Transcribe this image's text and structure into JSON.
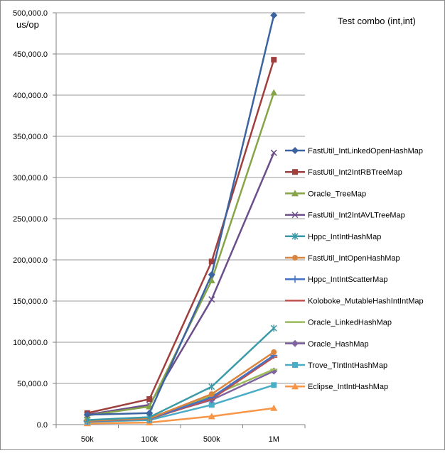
{
  "chart_data": {
    "type": "line",
    "title": "Test combo (int,int)",
    "ylabel": "us/op",
    "xlabel": "",
    "categories": [
      "50k",
      "100k",
      "500k",
      "1M"
    ],
    "ylim": [
      0,
      500000
    ],
    "yticks": [
      "0.0",
      "50,000.0",
      "100,000.0",
      "150,000.0",
      "200,000.0",
      "250,000.0",
      "300,000.0",
      "350,000.0",
      "400,000.0",
      "450,000.0",
      "500,000.0"
    ],
    "grid": true,
    "legend_position": "right",
    "series": [
      {
        "name": "FastUtil_IntLinkedOpenHashMap",
        "color": "#3B64A0",
        "marker": "diamond",
        "values": [
          12000,
          14000,
          182000,
          497000
        ]
      },
      {
        "name": "FastUtil_Int2IntRBTreeMap",
        "color": "#A0403E",
        "marker": "square",
        "values": [
          14000,
          31000,
          198000,
          443000
        ]
      },
      {
        "name": "Oracle_TreeMap",
        "color": "#86A548",
        "marker": "triangle",
        "values": [
          11000,
          22000,
          175000,
          403000
        ]
      },
      {
        "name": "FastUtil_Int2IntAVLTreeMap",
        "color": "#6B4E8A",
        "marker": "x",
        "values": [
          12000,
          24000,
          152000,
          330000
        ]
      },
      {
        "name": "Hppc_IntIntHashMap",
        "color": "#3A9AA7",
        "marker": "star",
        "values": [
          5500,
          9000,
          46000,
          117000
        ]
      },
      {
        "name": "FastUtil_IntOpenHashMap",
        "color": "#DB843D",
        "marker": "circle",
        "values": [
          4500,
          7500,
          37000,
          88000
        ]
      },
      {
        "name": "Hppc_IntIntScatterMap",
        "color": "#4472C4",
        "marker": "plus",
        "values": [
          4000,
          7000,
          33000,
          84000
        ]
      },
      {
        "name": "Koloboke_MutableHashIntIntMap",
        "color": "#C0504D",
        "marker": "dash",
        "values": [
          4200,
          6800,
          31000,
          82000
        ]
      },
      {
        "name": "Oracle_LinkedHashMap",
        "color": "#9BBB59",
        "marker": "dash",
        "values": [
          5000,
          8000,
          35000,
          67000
        ]
      },
      {
        "name": "Oracle_HashMap",
        "color": "#8064A2",
        "marker": "diamond",
        "values": [
          4800,
          7800,
          30000,
          65000
        ]
      },
      {
        "name": "Trove_TIntIntHashMap",
        "color": "#4BACC6",
        "marker": "square",
        "values": [
          3500,
          5500,
          24000,
          48000
        ]
      },
      {
        "name": "Eclipse_IntIntHashMap",
        "color": "#F79646",
        "marker": "triangle",
        "values": [
          1500,
          2500,
          10000,
          20000
        ]
      }
    ]
  }
}
